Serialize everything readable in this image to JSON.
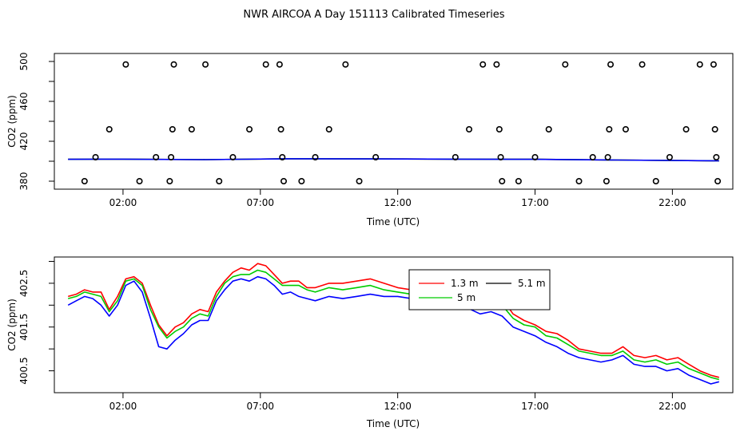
{
  "title": "NWR AIRCOA A  Day 151113  Calibrated Timeseries",
  "chart_data": [
    {
      "type": "scatter",
      "xlabel": "Time (UTC)",
      "ylabel": "CO2 (ppm)",
      "xlim": [
        -0.5,
        24.2
      ],
      "ylim": [
        372,
        508
      ],
      "x_ticks": [
        2,
        7,
        12,
        17,
        22
      ],
      "x_tick_labels": [
        "02:00",
        "07:00",
        "12:00",
        "17:00",
        "22:00"
      ],
      "y_ticks": [
        380,
        420,
        460,
        500
      ],
      "y_minor_ticks": [
        400,
        440,
        480
      ],
      "points": [
        {
          "x": 0.6,
          "y": 380
        },
        {
          "x": 1.0,
          "y": 404
        },
        {
          "x": 1.5,
          "y": 432
        },
        {
          "x": 2.1,
          "y": 497
        },
        {
          "x": 2.6,
          "y": 380
        },
        {
          "x": 3.2,
          "y": 404
        },
        {
          "x": 3.7,
          "y": 380
        },
        {
          "x": 3.75,
          "y": 404
        },
        {
          "x": 3.8,
          "y": 432
        },
        {
          "x": 3.85,
          "y": 497
        },
        {
          "x": 4.5,
          "y": 432
        },
        {
          "x": 5.0,
          "y": 497
        },
        {
          "x": 5.5,
          "y": 380
        },
        {
          "x": 6.0,
          "y": 404
        },
        {
          "x": 6.6,
          "y": 432
        },
        {
          "x": 7.2,
          "y": 497
        },
        {
          "x": 7.7,
          "y": 497
        },
        {
          "x": 7.75,
          "y": 432
        },
        {
          "x": 7.8,
          "y": 404
        },
        {
          "x": 7.85,
          "y": 380
        },
        {
          "x": 8.5,
          "y": 380
        },
        {
          "x": 9.0,
          "y": 404
        },
        {
          "x": 9.5,
          "y": 432
        },
        {
          "x": 10.1,
          "y": 497
        },
        {
          "x": 10.6,
          "y": 380
        },
        {
          "x": 11.2,
          "y": 404
        },
        {
          "x": 14.1,
          "y": 404
        },
        {
          "x": 14.6,
          "y": 432
        },
        {
          "x": 15.1,
          "y": 497
        },
        {
          "x": 15.6,
          "y": 497
        },
        {
          "x": 15.7,
          "y": 432
        },
        {
          "x": 15.75,
          "y": 404
        },
        {
          "x": 15.8,
          "y": 380
        },
        {
          "x": 16.4,
          "y": 380
        },
        {
          "x": 17.0,
          "y": 404
        },
        {
          "x": 17.5,
          "y": 432
        },
        {
          "x": 18.1,
          "y": 497
        },
        {
          "x": 18.6,
          "y": 380
        },
        {
          "x": 19.1,
          "y": 404
        },
        {
          "x": 19.6,
          "y": 380
        },
        {
          "x": 19.65,
          "y": 404
        },
        {
          "x": 19.7,
          "y": 432
        },
        {
          "x": 19.75,
          "y": 497
        },
        {
          "x": 20.3,
          "y": 432
        },
        {
          "x": 20.9,
          "y": 497
        },
        {
          "x": 21.4,
          "y": 380
        },
        {
          "x": 21.9,
          "y": 404
        },
        {
          "x": 22.5,
          "y": 432
        },
        {
          "x": 23.0,
          "y": 497
        },
        {
          "x": 23.5,
          "y": 497
        },
        {
          "x": 23.55,
          "y": 432
        },
        {
          "x": 23.6,
          "y": 404
        },
        {
          "x": 23.65,
          "y": 380
        }
      ],
      "series": [
        {
          "color": "#ff0000",
          "x": [
            0,
            2,
            5,
            8,
            11,
            14,
            17,
            20,
            23.7
          ],
          "y": [
            401.9,
            402.1,
            401.6,
            402.5,
            402.3,
            402.1,
            401.9,
            401.2,
            400.4
          ]
        },
        {
          "color": "#00cc00",
          "x": [
            0,
            2,
            5,
            8,
            11,
            14,
            17,
            20,
            23.7
          ],
          "y": [
            401.9,
            402.1,
            401.6,
            402.5,
            402.3,
            402.1,
            401.9,
            401.2,
            400.4
          ]
        },
        {
          "color": "#0000ff",
          "x": [
            0,
            2,
            5,
            8,
            11,
            14,
            17,
            20,
            23.7
          ],
          "y": [
            401.9,
            402.1,
            401.6,
            402.5,
            402.3,
            402.1,
            401.9,
            401.2,
            400.4
          ]
        }
      ]
    },
    {
      "type": "line",
      "xlabel": "Time (UTC)",
      "ylabel": "CO2 (ppm)",
      "xlim": [
        -0.5,
        24.2
      ],
      "ylim": [
        400.0,
        403.1
      ],
      "x_ticks": [
        2,
        7,
        12,
        17,
        22
      ],
      "x_tick_labels": [
        "02:00",
        "07:00",
        "12:00",
        "17:00",
        "22:00"
      ],
      "y_ticks": [
        400.5,
        401.5,
        402.5
      ],
      "y_minor_ticks": [
        401.0,
        402.0,
        403.0
      ],
      "legend": {
        "position": "top-right",
        "labels": [
          "1.3 m",
          "5.1 m",
          "5 m"
        ]
      },
      "series": [
        {
          "name": "1.3 m",
          "color": "#ff0000",
          "x": [
            0.0,
            0.3,
            0.6,
            0.9,
            1.2,
            1.5,
            1.8,
            2.1,
            2.4,
            2.7,
            3.0,
            3.3,
            3.6,
            3.9,
            4.2,
            4.5,
            4.8,
            5.1,
            5.4,
            5.7,
            6.0,
            6.3,
            6.6,
            6.9,
            7.2,
            7.5,
            7.8,
            8.1,
            8.4,
            8.7,
            9.0,
            9.5,
            10.0,
            10.5,
            11.0,
            11.5,
            12.0,
            12.5,
            13.0,
            13.5,
            14.0,
            14.5,
            15.0,
            15.4,
            15.8,
            16.2,
            16.6,
            17.0,
            17.4,
            17.8,
            18.2,
            18.6,
            19.0,
            19.4,
            19.8,
            20.2,
            20.6,
            21.0,
            21.4,
            21.8,
            22.2,
            22.6,
            23.0,
            23.4,
            23.7
          ],
          "y": [
            402.2,
            402.25,
            402.35,
            402.3,
            402.3,
            401.9,
            402.2,
            402.6,
            402.65,
            402.5,
            402.0,
            401.55,
            401.3,
            401.5,
            401.6,
            401.8,
            401.9,
            401.85,
            402.3,
            402.55,
            402.75,
            402.85,
            402.8,
            402.95,
            402.9,
            402.7,
            402.5,
            402.55,
            402.55,
            402.4,
            402.4,
            402.5,
            402.5,
            402.55,
            402.6,
            402.5,
            402.4,
            402.35,
            402.35,
            402.3,
            402.35,
            402.25,
            402.2,
            402.3,
            402.15,
            401.8,
            401.65,
            401.55,
            401.4,
            401.35,
            401.2,
            401.0,
            400.95,
            400.9,
            400.9,
            401.05,
            400.85,
            400.8,
            400.85,
            400.75,
            400.8,
            400.65,
            400.5,
            400.4,
            400.35
          ]
        },
        {
          "name": "5.1 m",
          "color": "#00cc00",
          "x": [
            0.0,
            0.3,
            0.6,
            0.9,
            1.2,
            1.5,
            1.8,
            2.1,
            2.4,
            2.7,
            3.0,
            3.3,
            3.6,
            3.9,
            4.2,
            4.5,
            4.8,
            5.1,
            5.4,
            5.7,
            6.0,
            6.3,
            6.6,
            6.9,
            7.2,
            7.5,
            7.8,
            8.1,
            8.4,
            8.7,
            9.0,
            9.5,
            10.0,
            10.5,
            11.0,
            11.5,
            12.0,
            12.5,
            13.0,
            13.5,
            14.0,
            14.5,
            15.0,
            15.4,
            15.8,
            16.2,
            16.6,
            17.0,
            17.4,
            17.8,
            18.2,
            18.6,
            19.0,
            19.4,
            19.8,
            20.2,
            20.6,
            21.0,
            21.4,
            21.8,
            22.2,
            22.6,
            23.0,
            23.4,
            23.7
          ],
          "y": [
            402.15,
            402.2,
            402.3,
            402.25,
            402.2,
            401.85,
            402.1,
            402.55,
            402.6,
            402.45,
            401.9,
            401.5,
            401.25,
            401.4,
            401.5,
            401.7,
            401.8,
            401.75,
            402.2,
            402.5,
            402.65,
            402.7,
            402.7,
            402.8,
            402.75,
            402.6,
            402.45,
            402.45,
            402.45,
            402.35,
            402.3,
            402.4,
            402.35,
            402.4,
            402.45,
            402.35,
            402.3,
            402.25,
            402.25,
            402.2,
            402.25,
            402.15,
            402.1,
            402.15,
            402.0,
            401.7,
            401.55,
            401.5,
            401.3,
            401.25,
            401.1,
            400.95,
            400.9,
            400.85,
            400.85,
            400.95,
            400.75,
            400.7,
            400.75,
            400.65,
            400.7,
            400.55,
            400.45,
            400.35,
            400.3
          ]
        },
        {
          "name": "5 m",
          "color": "#0000ff",
          "x": [
            0.0,
            0.3,
            0.6,
            0.9,
            1.2,
            1.5,
            1.8,
            2.1,
            2.4,
            2.7,
            3.0,
            3.3,
            3.6,
            3.9,
            4.2,
            4.5,
            4.8,
            5.1,
            5.4,
            5.7,
            6.0,
            6.3,
            6.6,
            6.9,
            7.2,
            7.5,
            7.8,
            8.1,
            8.4,
            8.7,
            9.0,
            9.5,
            10.0,
            10.5,
            11.0,
            11.5,
            12.0,
            12.5,
            13.0,
            13.5,
            14.0,
            14.5,
            15.0,
            15.4,
            15.8,
            16.2,
            16.6,
            17.0,
            17.4,
            17.8,
            18.2,
            18.6,
            19.0,
            19.4,
            19.8,
            20.2,
            20.6,
            21.0,
            21.4,
            21.8,
            22.2,
            22.6,
            23.0,
            23.4,
            23.7
          ],
          "y": [
            402.0,
            402.1,
            402.2,
            402.15,
            402.0,
            401.75,
            402.0,
            402.45,
            402.55,
            402.3,
            401.7,
            401.05,
            401.0,
            401.2,
            401.35,
            401.55,
            401.65,
            401.65,
            402.1,
            402.35,
            402.55,
            402.6,
            402.55,
            402.65,
            402.6,
            402.45,
            402.25,
            402.3,
            402.2,
            402.15,
            402.1,
            402.2,
            402.15,
            402.2,
            402.25,
            402.2,
            402.2,
            402.15,
            402.15,
            402.15,
            402.2,
            401.95,
            401.8,
            401.85,
            401.75,
            401.5,
            401.4,
            401.3,
            401.15,
            401.05,
            400.9,
            400.8,
            400.75,
            400.7,
            400.75,
            400.85,
            400.65,
            400.6,
            400.6,
            400.5,
            400.55,
            400.4,
            400.3,
            400.2,
            400.25
          ]
        }
      ]
    }
  ]
}
